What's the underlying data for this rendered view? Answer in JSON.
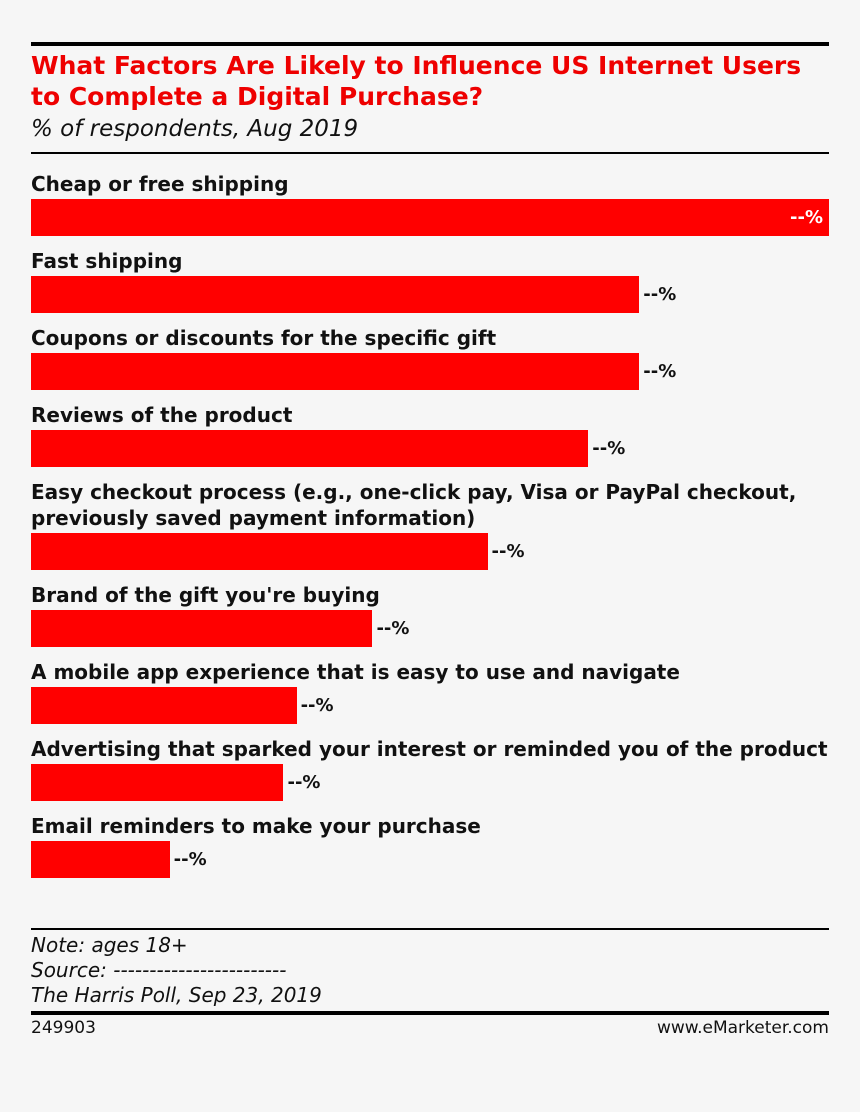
{
  "chart_data": {
    "type": "bar",
    "orientation": "horizontal",
    "title": "What Factors Are Likely to Influence US Internet Users to Complete a Digital Purchase?",
    "subtitle": "% of respondents, Aug 2019",
    "categories": [
      "Cheap or free shipping",
      "Fast shipping",
      "Coupons or discounts for the specific gift",
      "Reviews of the product",
      "Easy checkout process (e.g., one-click pay, Visa or PayPal checkout, previously saved payment information)",
      "Brand of the gift you're buying",
      "A mobile app experience that is easy to use and navigate",
      "Advertising that sparked your interest or reminded you of the product",
      "Email reminders to make your purchase"
    ],
    "values": [
      61,
      46.5,
      46.5,
      42.6,
      34.9,
      26.1,
      20.3,
      19.3,
      10.6
    ],
    "value_labels": [
      "--%",
      "--%",
      "--%",
      "--%",
      "--%",
      "--%",
      "--%",
      "--%",
      "--%"
    ],
    "color": "#ff0000",
    "notes": [
      "Note: ages 18+",
      "Source: ------------------------",
      "The Harris Poll, Sep 23, 2019"
    ],
    "chart_id": "249903",
    "source_site": "www.eMarketer.com"
  }
}
